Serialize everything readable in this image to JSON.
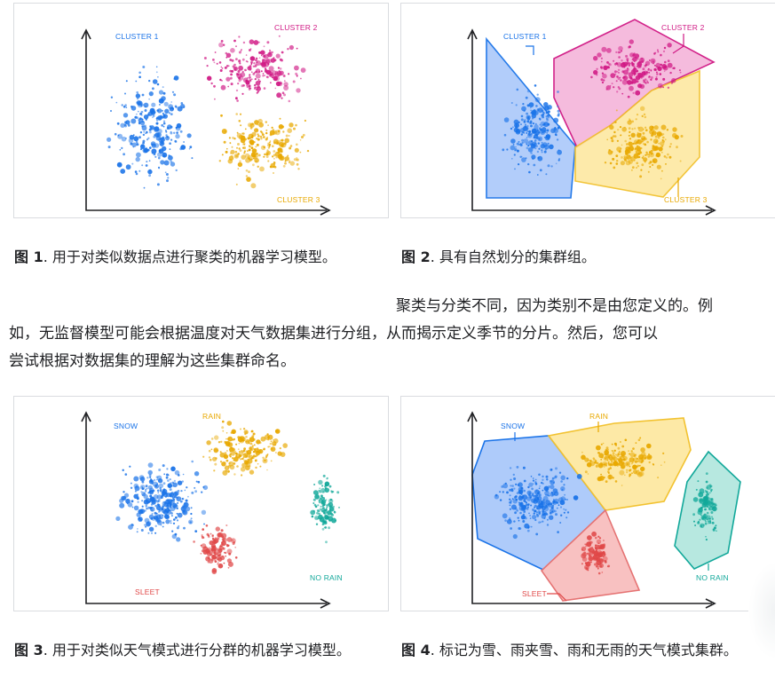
{
  "figures": [
    {
      "id": "fig1",
      "labels": {
        "c1": "CLUSTER 1",
        "c2": "CLUSTER 2",
        "c3": "CLUSTER 3"
      },
      "caption_label": "图 1",
      "caption_text": ". 用于对类似数据点进行聚类的机器学习模型。"
    },
    {
      "id": "fig2",
      "labels": {
        "c1": "CLUSTER 1",
        "c2": "CLUSTER 2",
        "c3": "CLUSTER 3"
      },
      "caption_label": "图 2",
      "caption_text": ". 具有自然划分的集群组。"
    },
    {
      "id": "fig3",
      "labels": {
        "snow": "SNOW",
        "rain": "RAIN",
        "sleet": "SLEET",
        "norain": "NO RAIN"
      },
      "caption_label": "图 3",
      "caption_text": ". 用于对类似天气模式进行分群的机器学习模型。"
    },
    {
      "id": "fig4",
      "labels": {
        "snow": "SNOW",
        "rain": "RAIN",
        "sleet": "SLEET",
        "norain": "NO RAIN"
      },
      "caption_label": "图 4",
      "caption_text": ". 标记为雪、雨夹雪、雨和无雨的天气模式集群。"
    }
  ],
  "paragraph": {
    "line1": "聚类与分类不同，因为类别不是由您定义的。例",
    "line2": "如，无监督模型可能会根据温度对天气数据集进行分组，从而揭示定义季节的分片。然后，您可以",
    "line3": "尝试根据对数据集的理解为这些集群命名。"
  },
  "colors": {
    "blue": "#1a73e8",
    "magenta": "#d01884",
    "yellow": "#e8a800",
    "red": "#e04848",
    "teal": "#12a89a"
  }
}
